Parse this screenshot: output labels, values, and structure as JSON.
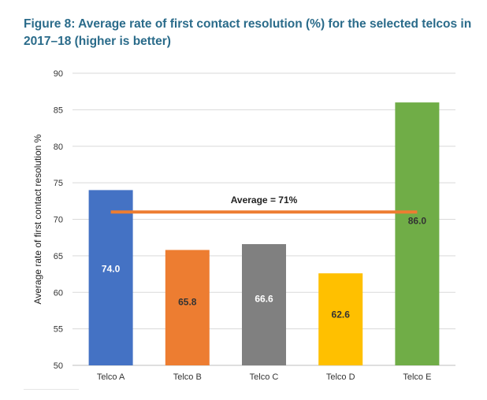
{
  "figure": {
    "title": "Figure 8: Average rate of first contact resolution (%) for the selected telcos in 2017–18 (higher is better)"
  },
  "chart_data": {
    "type": "bar",
    "title": "Figure 8: Average rate of first contact resolution (%) for the selected telcos in 2017–18 (higher is better)",
    "xlabel": "",
    "ylabel": "Average rate of first contact resolution %",
    "categories": [
      "Telco A",
      "Telco B",
      "Telco C",
      "Telco D",
      "Telco E"
    ],
    "values": [
      74.0,
      65.8,
      66.6,
      62.6,
      86.0
    ],
    "data_labels": [
      "74.0",
      "65.8",
      "66.6",
      "62.6",
      "86.0"
    ],
    "bar_colors": [
      "#4472c4",
      "#ed7d31",
      "#808080",
      "#ffc000",
      "#70ad47"
    ],
    "label_colors": [
      "#ffffff",
      "#333333",
      "#ffffff",
      "#333333",
      "#333333"
    ],
    "ylim": [
      50,
      90
    ],
    "yticks": [
      50,
      55,
      60,
      65,
      70,
      75,
      80,
      85,
      90
    ],
    "grid": true,
    "reference_line": {
      "value": 71,
      "label": "Average = 71%",
      "color": "#ed7d31"
    }
  }
}
